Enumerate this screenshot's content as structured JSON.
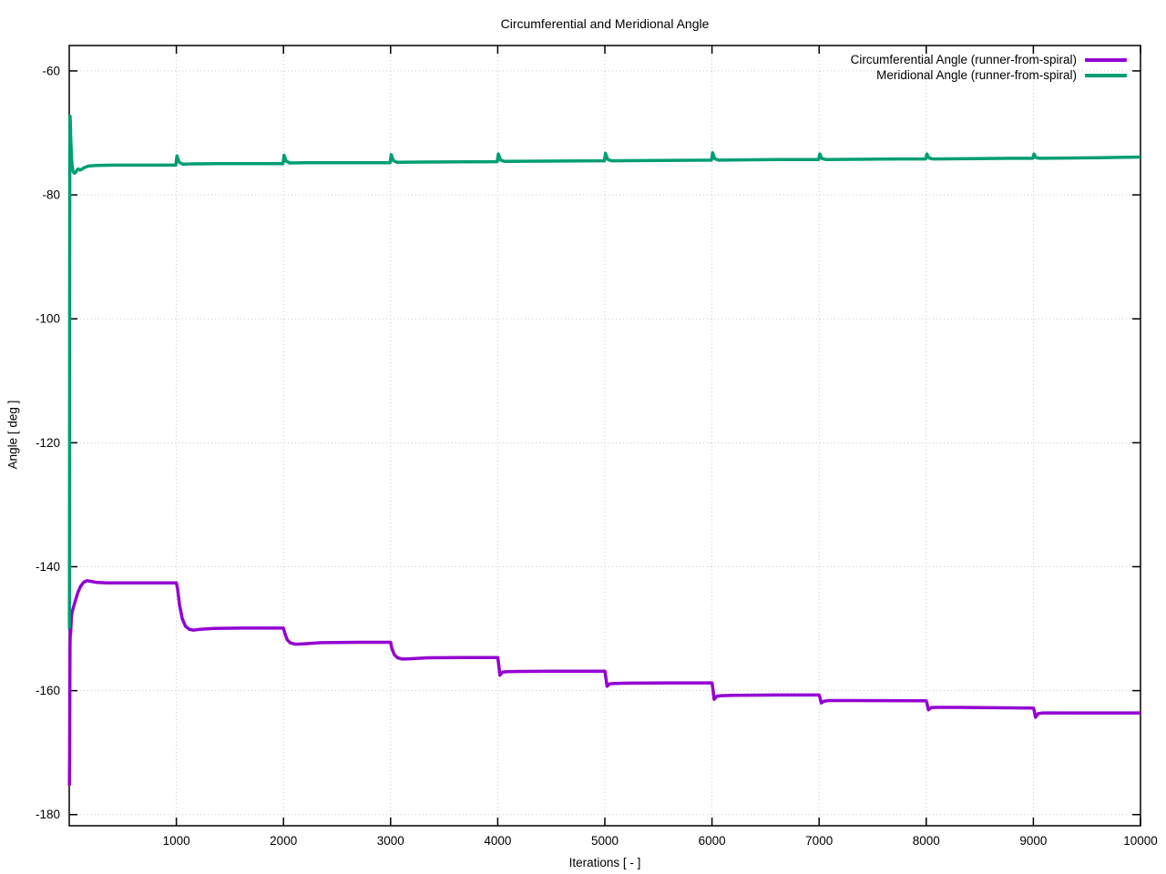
{
  "title": "Circumferential and Meridional Angle",
  "chart_data": {
    "type": "line",
    "title": "Circumferential and Meridional Angle",
    "xlabel": "Iterations [ - ]",
    "ylabel": "Angle [ deg ]",
    "xlim": [
      0,
      10000
    ],
    "ylim": [
      -181.8,
      -55.9
    ],
    "xticks": [
      1000,
      2000,
      3000,
      4000,
      5000,
      6000,
      7000,
      8000,
      9000,
      10000
    ],
    "yticks": [
      -180,
      -160,
      -140,
      -120,
      -100,
      -80,
      -60
    ],
    "grid": "dotted",
    "grid_color": "#c8c8c8",
    "border_color": "#000000",
    "legend_position": "top-right-inside",
    "series": [
      {
        "name": "Circumferential Angle (runner-from-spiral)",
        "color": "#9400d3",
        "points": [
          [
            2,
            -175.3
          ],
          [
            3,
            -171
          ],
          [
            4,
            -166
          ],
          [
            5,
            -161
          ],
          [
            6,
            -157
          ],
          [
            8,
            -152.5
          ],
          [
            10,
            -150.3
          ],
          [
            13,
            -150.9
          ],
          [
            16,
            -149.6
          ],
          [
            20,
            -148.2
          ],
          [
            26,
            -147.3
          ],
          [
            34,
            -146.9
          ],
          [
            45,
            -146.2
          ],
          [
            60,
            -145.3
          ],
          [
            80,
            -144.2
          ],
          [
            105,
            -143.2
          ],
          [
            135,
            -142.5
          ],
          [
            165,
            -142.25
          ],
          [
            200,
            -142.35
          ],
          [
            260,
            -142.55
          ],
          [
            350,
            -142.6
          ],
          [
            500,
            -142.6
          ],
          [
            700,
            -142.6
          ],
          [
            1000,
            -142.6
          ],
          [
            1012,
            -143.6
          ],
          [
            1030,
            -146.2
          ],
          [
            1055,
            -148.4
          ],
          [
            1085,
            -149.6
          ],
          [
            1120,
            -150.1
          ],
          [
            1160,
            -150.25
          ],
          [
            1220,
            -150.1
          ],
          [
            1350,
            -149.95
          ],
          [
            1600,
            -149.9
          ],
          [
            2000,
            -149.9
          ],
          [
            2012,
            -150.7
          ],
          [
            2035,
            -151.8
          ],
          [
            2065,
            -152.3
          ],
          [
            2110,
            -152.5
          ],
          [
            2180,
            -152.45
          ],
          [
            2350,
            -152.25
          ],
          [
            2700,
            -152.2
          ],
          [
            3000,
            -152.2
          ],
          [
            3012,
            -153.2
          ],
          [
            3035,
            -154.2
          ],
          [
            3065,
            -154.7
          ],
          [
            3110,
            -154.9
          ],
          [
            3180,
            -154.85
          ],
          [
            3350,
            -154.7
          ],
          [
            3700,
            -154.65
          ],
          [
            4000,
            -154.65
          ],
          [
            4008,
            -155.6
          ],
          [
            4020,
            -157.5
          ],
          [
            4045,
            -157.0
          ],
          [
            4090,
            -156.95
          ],
          [
            4200,
            -156.9
          ],
          [
            4500,
            -156.85
          ],
          [
            5000,
            -156.85
          ],
          [
            5008,
            -157.7
          ],
          [
            5020,
            -159.3
          ],
          [
            5045,
            -158.9
          ],
          [
            5090,
            -158.85
          ],
          [
            5200,
            -158.8
          ],
          [
            5600,
            -158.75
          ],
          [
            6000,
            -158.75
          ],
          [
            6008,
            -159.6
          ],
          [
            6020,
            -161.4
          ],
          [
            6045,
            -160.9
          ],
          [
            6090,
            -160.8
          ],
          [
            6200,
            -160.75
          ],
          [
            6600,
            -160.7
          ],
          [
            7000,
            -160.7
          ],
          [
            7008,
            -161.1
          ],
          [
            7020,
            -162.0
          ],
          [
            7045,
            -161.7
          ],
          [
            7090,
            -161.6
          ],
          [
            7300,
            -161.6
          ],
          [
            8000,
            -161.65
          ],
          [
            8008,
            -162.1
          ],
          [
            8020,
            -163.1
          ],
          [
            8045,
            -162.75
          ],
          [
            8090,
            -162.7
          ],
          [
            8300,
            -162.7
          ],
          [
            9000,
            -162.8
          ],
          [
            9008,
            -163.2
          ],
          [
            9020,
            -164.3
          ],
          [
            9045,
            -163.7
          ],
          [
            9090,
            -163.6
          ],
          [
            9300,
            -163.6
          ],
          [
            10000,
            -163.6
          ]
        ]
      },
      {
        "name": "Meridional Angle (runner-from-spiral)",
        "color": "#009e73",
        "points": [
          [
            2,
            -150
          ],
          [
            3,
            -120
          ],
          [
            4,
            -90
          ],
          [
            5,
            -75
          ],
          [
            6,
            -69
          ],
          [
            8,
            -67.3
          ],
          [
            10,
            -68.2
          ],
          [
            13,
            -70.2
          ],
          [
            17,
            -72.3
          ],
          [
            22,
            -74.2
          ],
          [
            28,
            -75.5
          ],
          [
            36,
            -76.2
          ],
          [
            48,
            -76.5
          ],
          [
            60,
            -76.4
          ],
          [
            72,
            -76.0
          ],
          [
            85,
            -75.8
          ],
          [
            100,
            -76.0
          ],
          [
            115,
            -75.9
          ],
          [
            140,
            -75.6
          ],
          [
            180,
            -75.35
          ],
          [
            250,
            -75.25
          ],
          [
            400,
            -75.2
          ],
          [
            700,
            -75.2
          ],
          [
            995,
            -75.2
          ],
          [
            1006,
            -73.7
          ],
          [
            1025,
            -74.7
          ],
          [
            1060,
            -75.05
          ],
          [
            1150,
            -75.0
          ],
          [
            1400,
            -74.95
          ],
          [
            1995,
            -74.95
          ],
          [
            2006,
            -73.6
          ],
          [
            2025,
            -74.55
          ],
          [
            2060,
            -74.85
          ],
          [
            2200,
            -74.8
          ],
          [
            2995,
            -74.8
          ],
          [
            3006,
            -73.5
          ],
          [
            3025,
            -74.45
          ],
          [
            3060,
            -74.75
          ],
          [
            3300,
            -74.7
          ],
          [
            3995,
            -74.65
          ],
          [
            4006,
            -73.4
          ],
          [
            4025,
            -74.35
          ],
          [
            4060,
            -74.6
          ],
          [
            4400,
            -74.55
          ],
          [
            4995,
            -74.5
          ],
          [
            5006,
            -73.3
          ],
          [
            5025,
            -74.25
          ],
          [
            5060,
            -74.5
          ],
          [
            5500,
            -74.45
          ],
          [
            5995,
            -74.4
          ],
          [
            6006,
            -73.2
          ],
          [
            6025,
            -74.15
          ],
          [
            6060,
            -74.4
          ],
          [
            6600,
            -74.3
          ],
          [
            6995,
            -74.3
          ],
          [
            7006,
            -73.4
          ],
          [
            7025,
            -74.1
          ],
          [
            7060,
            -74.3
          ],
          [
            7700,
            -74.2
          ],
          [
            7995,
            -74.2
          ],
          [
            8006,
            -73.4
          ],
          [
            8025,
            -74.05
          ],
          [
            8060,
            -74.2
          ],
          [
            8800,
            -74.1
          ],
          [
            8995,
            -74.1
          ],
          [
            9006,
            -73.4
          ],
          [
            9025,
            -74.0
          ],
          [
            9060,
            -74.1
          ],
          [
            9600,
            -74.0
          ],
          [
            10000,
            -73.9
          ]
        ]
      }
    ]
  }
}
